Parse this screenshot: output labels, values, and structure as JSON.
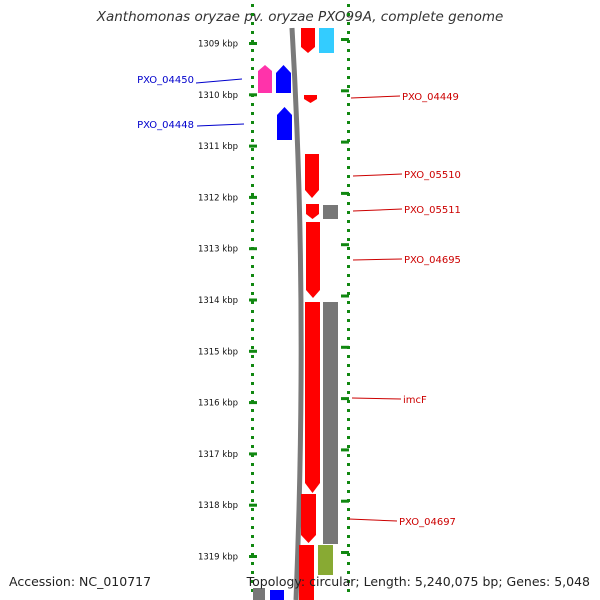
{
  "title": "Xanthomonas oryzae pv. oryzae PXO99A, complete genome",
  "footer": {
    "accession": "Accession: NC_010717",
    "summary": "Topology: circular; Length: 5,240,075 bp; Genes: 5,048"
  },
  "scale": {
    "unit": "kbp",
    "ticks": [
      "1309 kbp",
      "1310 kbp",
      "1311 kbp",
      "1312 kbp",
      "1313 kbp",
      "1314 kbp",
      "1315 kbp",
      "1316 kbp",
      "1317 kbp",
      "1318 kbp",
      "1319 kbp"
    ]
  },
  "genes": {
    "left": [
      {
        "label": "PXO_04450",
        "color": "#0000cc"
      },
      {
        "label": "PXO_04448",
        "color": "#0000cc"
      }
    ],
    "right": [
      {
        "label": "PXO_04449",
        "color": "#cc0000"
      },
      {
        "label": "PXO_05510",
        "color": "#cc0000"
      },
      {
        "label": "PXO_05511",
        "color": "#cc0000"
      },
      {
        "label": "PXO_04695",
        "color": "#cc0000"
      },
      {
        "label": "imcF",
        "color": "#cc0000"
      },
      {
        "label": "PXO_04697",
        "color": "#cc0000"
      }
    ]
  },
  "colors": {
    "forward_cds": "#ff0000",
    "reverse_cds": "#0000ff",
    "rna": "#ff33aa",
    "pseudogene": "#777777",
    "misc_feature": "#33ccff",
    "other": "#88aa33",
    "backbone": "#808080",
    "tick": "#118811"
  }
}
